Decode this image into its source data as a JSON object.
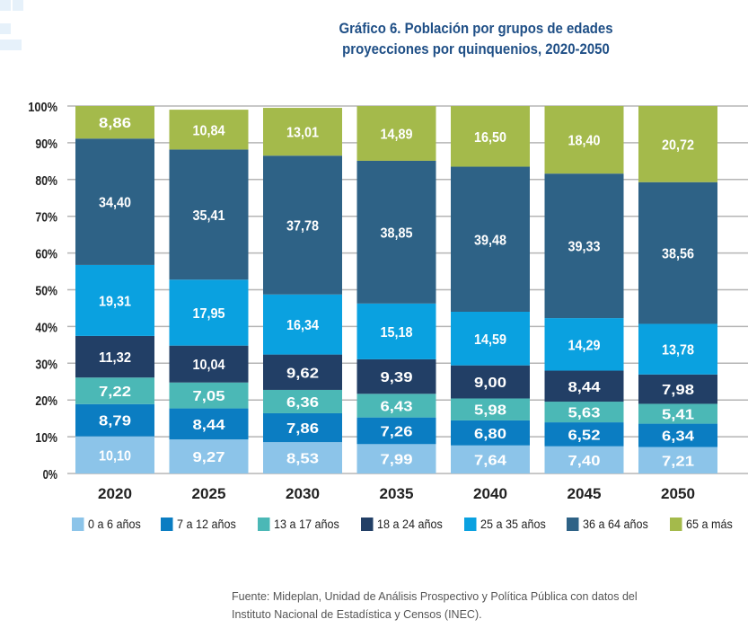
{
  "chart_data": {
    "type": "bar",
    "stacked": true,
    "title": "Gráfico 6. Población por grupos de edades proyecciones por quinquenios, 2020-2050",
    "title_lines": [
      "Gráfico 6. Población por grupos de edades",
      "proyecciones por quinquenios, 2020-2050"
    ],
    "categories": [
      "2020",
      "2025",
      "2030",
      "2035",
      "2040",
      "2045",
      "2050"
    ],
    "ylim": [
      0,
      100
    ],
    "yticks": [
      "0%",
      "10%",
      "20%",
      "30%",
      "40%",
      "50%",
      "60%",
      "70%",
      "80%",
      "90%",
      "100%"
    ],
    "grid": true,
    "legend_position": "bottom",
    "series": [
      {
        "name": "0 a 6 años",
        "color": "#8cc4e9",
        "values": [
          10.1,
          9.27,
          8.53,
          7.99,
          7.64,
          7.4,
          7.21
        ],
        "labels": [
          "10,10",
          "9,27",
          "8,53",
          "7,99",
          "7,64",
          "7,40",
          "7,21"
        ]
      },
      {
        "name": "7 a 12 años",
        "color": "#0b7dc2",
        "values": [
          8.79,
          8.44,
          7.86,
          7.26,
          6.8,
          6.52,
          6.34
        ],
        "labels": [
          "8,79",
          "8,44",
          "7,86",
          "7,26",
          "6,80",
          "6,52",
          "6,34"
        ]
      },
      {
        "name": "13 a 17 años",
        "color": "#4bb8b6",
        "values": [
          7.22,
          7.05,
          6.36,
          6.43,
          5.98,
          5.63,
          5.41
        ],
        "labels": [
          "7,22",
          "7,05",
          "6,36",
          "6,43",
          "5,98",
          "5,63",
          "5,41"
        ]
      },
      {
        "name": "18 a 24 años",
        "color": "#223f66",
        "values": [
          11.32,
          10.04,
          9.62,
          9.39,
          9.0,
          8.44,
          7.98
        ],
        "labels": [
          "11,32",
          "10,04",
          "9,62",
          "9,39",
          "9,00",
          "8,44",
          "7,98"
        ]
      },
      {
        "name": "25 a 35 años",
        "color": "#0aa1e0",
        "values": [
          19.31,
          17.95,
          16.34,
          15.18,
          14.59,
          14.29,
          13.78
        ],
        "labels": [
          "19,31",
          "17,95",
          "16,34",
          "15,18",
          "14,59",
          "14,29",
          "13,78"
        ]
      },
      {
        "name": "36 a 64 años",
        "color": "#2e6286",
        "values": [
          34.4,
          35.41,
          37.78,
          38.85,
          39.48,
          39.33,
          38.56
        ],
        "labels": [
          "34,40",
          "35,41",
          "37,78",
          "38,85",
          "39,48",
          "39,33",
          "38,56"
        ]
      },
      {
        "name": "65 a más",
        "color": "#a4ba4b",
        "values": [
          8.86,
          10.84,
          13.01,
          14.89,
          16.5,
          18.4,
          20.72
        ],
        "labels": [
          "8,86",
          "10,84",
          "13,01",
          "14,89",
          "16,50",
          "18,40",
          "20,72"
        ]
      }
    ]
  },
  "source": [
    "Fuente: Mideplan, Unidad de Análisis Prospectivo y Política Pública con datos del",
    "Instituto Nacional de Estadística y Censos (INEC)."
  ]
}
